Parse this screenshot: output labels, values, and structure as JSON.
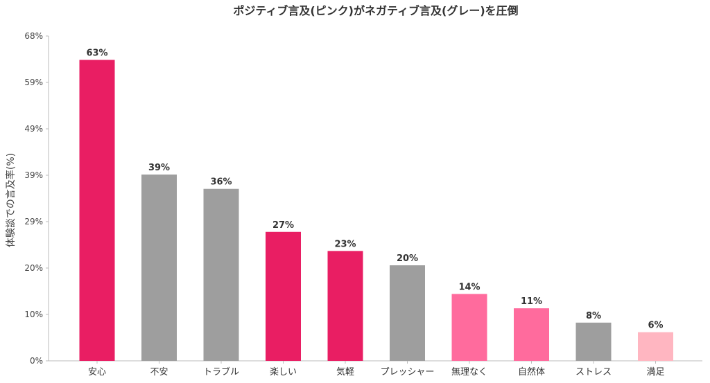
{
  "chart_data": {
    "type": "bar",
    "title": "ポジティブ言及(ピンク)がネガティブ言及(グレー)を圧倒",
    "xlabel": "",
    "ylabel": "体験談での言及率(%)",
    "ylim": [
      0,
      68
    ],
    "yticks": [
      "0%",
      "10%",
      "20%",
      "29%",
      "39%",
      "49%",
      "59%",
      "68%"
    ],
    "grid": false,
    "categories": [
      "安心",
      "不安",
      "トラブル",
      "楽しい",
      "気軽",
      "プレッシャー",
      "無理なく",
      "自然体",
      "ストレス",
      "満足"
    ],
    "values": [
      63,
      39,
      36,
      27,
      23,
      20,
      14,
      11,
      8,
      6
    ],
    "data_labels": [
      "63%",
      "39%",
      "36%",
      "27%",
      "23%",
      "20%",
      "14%",
      "11%",
      "8%",
      "6%"
    ],
    "colors": [
      "#e91e63",
      "#9e9e9e",
      "#9e9e9e",
      "#e91e63",
      "#e91e63",
      "#9e9e9e",
      "#ff6b9d",
      "#ff6b9d",
      "#9e9e9e",
      "#ffb6c1"
    ]
  }
}
